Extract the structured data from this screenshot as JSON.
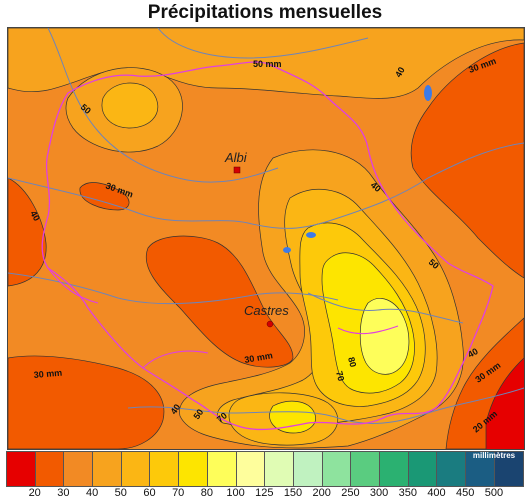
{
  "title": "Précipitations mensuelles",
  "cities": [
    {
      "name": "Albi"
    },
    {
      "name": "Castres"
    }
  ],
  "contour_labels": [
    "50 mm",
    "40",
    "30 mm",
    "50",
    "30 mm",
    "40",
    "40",
    "50",
    "30 mm",
    "80",
    "70",
    "30 mm",
    "40",
    "50",
    "70",
    "40",
    "30 mm",
    "20 mm"
  ],
  "legend": {
    "unit_label": "millimètres",
    "classes": [
      {
        "label": "20",
        "color": "#e60000"
      },
      {
        "label": "30",
        "color": "#f25a00"
      },
      {
        "label": "40",
        "color": "#f28a24"
      },
      {
        "label": "50",
        "color": "#f7a31e"
      },
      {
        "label": "60",
        "color": "#fbb614"
      },
      {
        "label": "70",
        "color": "#fdc90a"
      },
      {
        "label": "80",
        "color": "#fde500"
      },
      {
        "label": "100",
        "color": "#fefe5a"
      },
      {
        "label": "125",
        "color": "#fefe9c"
      },
      {
        "label": "150",
        "color": "#e0fcb4"
      },
      {
        "label": "200",
        "color": "#c0f2c0"
      },
      {
        "label": "250",
        "color": "#8ee39e"
      },
      {
        "label": "300",
        "color": "#5acc80"
      },
      {
        "label": "350",
        "color": "#2bb171"
      },
      {
        "label": "400",
        "color": "#1a9875"
      },
      {
        "label": "450",
        "color": "#1a7c80"
      },
      {
        "label": "500",
        "color": "#1b5d83"
      },
      {
        "label": "",
        "color": "#1a4470"
      }
    ]
  }
}
